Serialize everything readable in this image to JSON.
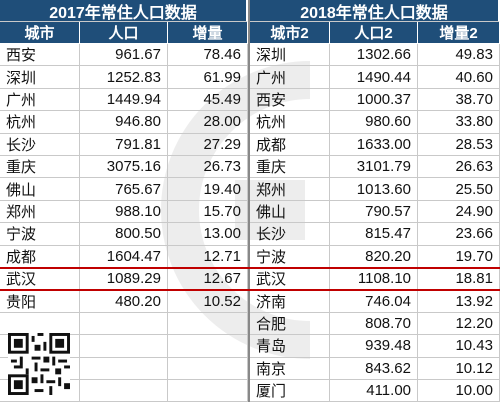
{
  "chart_data": {
    "type": "table",
    "tables": [
      {
        "title": "2017年常住人口数据",
        "columns": [
          "城市",
          "人口",
          "增量"
        ],
        "rows": [
          [
            "西安",
            "961.67",
            "78.46"
          ],
          [
            "深圳",
            "1252.83",
            "61.99"
          ],
          [
            "广州",
            "1449.94",
            "45.49"
          ],
          [
            "杭州",
            "946.80",
            "28.00"
          ],
          [
            "长沙",
            "791.81",
            "27.29"
          ],
          [
            "重庆",
            "3075.16",
            "26.73"
          ],
          [
            "佛山",
            "765.67",
            "19.40"
          ],
          [
            "郑州",
            "988.10",
            "15.70"
          ],
          [
            "宁波",
            "800.50",
            "13.00"
          ],
          [
            "成都",
            "1604.47",
            "12.71"
          ],
          [
            "武汉",
            "1089.29",
            "12.67"
          ],
          [
            "贵阳",
            "480.20",
            "10.52"
          ]
        ]
      },
      {
        "title": "2018年常住人口数据",
        "columns": [
          "城市2",
          "人口2",
          "增量2"
        ],
        "rows": [
          [
            "深圳",
            "1302.66",
            "49.83"
          ],
          [
            "广州",
            "1490.44",
            "40.60"
          ],
          [
            "西安",
            "1000.37",
            "38.70"
          ],
          [
            "杭州",
            "980.60",
            "33.80"
          ],
          [
            "成都",
            "1633.00",
            "28.53"
          ],
          [
            "重庆",
            "3101.79",
            "26.63"
          ],
          [
            "郑州",
            "1013.60",
            "25.50"
          ],
          [
            "佛山",
            "790.57",
            "24.90"
          ],
          [
            "长沙",
            "815.47",
            "23.66"
          ],
          [
            "宁波",
            "820.20",
            "19.70"
          ],
          [
            "武汉",
            "1108.10",
            "18.81"
          ],
          [
            "济南",
            "746.04",
            "13.92"
          ],
          [
            "合肥",
            "808.70",
            "12.20"
          ],
          [
            "青岛",
            "939.48",
            "10.43"
          ],
          [
            "南京",
            "843.62",
            "10.12"
          ],
          [
            "厦门",
            "411.00",
            "10.00"
          ]
        ]
      }
    ],
    "highlight_city": "武汉"
  },
  "colors": {
    "header_bg": "#1f4e79",
    "header_text": "#ffffff",
    "highlight_line": "#c00000",
    "grid_line": "#c9c9c9"
  },
  "icons": {
    "qr": "qr-code-icon",
    "watermark": "watermark-logo-icon"
  }
}
